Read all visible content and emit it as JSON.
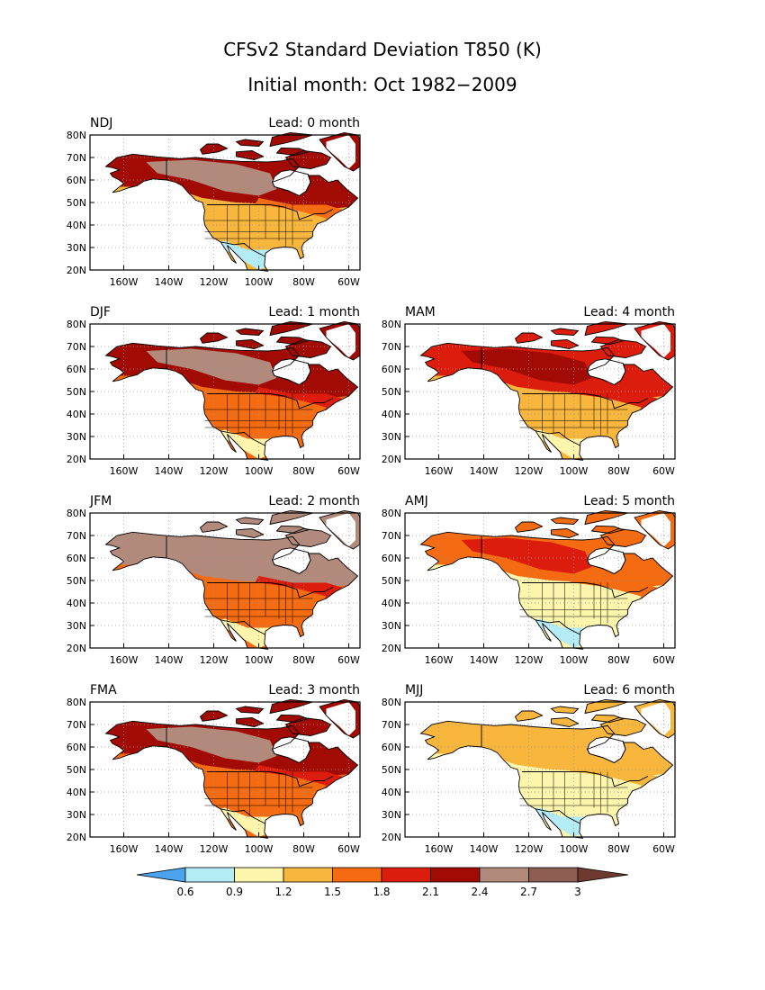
{
  "title": "CFSv2 Standard Deviation T850 (K)",
  "subtitle": "Initial month: Oct 1982−2009",
  "x_ticks": [
    "160W",
    "140W",
    "120W",
    "100W",
    "80W",
    "60W"
  ],
  "y_ticks": [
    "20N",
    "30N",
    "40N",
    "50N",
    "60N",
    "70N",
    "80N"
  ],
  "colorbar": {
    "ticks": [
      "0.6",
      "0.9",
      "1.2",
      "1.5",
      "1.8",
      "2.1",
      "2.4",
      "2.7",
      "3"
    ],
    "colors": [
      "#4aa3ec",
      "#b4ecf6",
      "#fcf5ab",
      "#f8b63d",
      "#f46b12",
      "#dc1c0c",
      "#a20b04",
      "#b28a7c",
      "#8e5e52",
      "#6e3a30"
    ]
  },
  "panels": [
    {
      "season": "NDJ",
      "lead": "Lead: 0 month",
      "bands": {
        "south": 1,
        "center": 3,
        "north": 6,
        "core": 7,
        "east": 4
      }
    },
    {
      "season": "DJF",
      "lead": "Lead: 1 month",
      "bands": {
        "south": 2,
        "center": 4,
        "north": 6,
        "core": 7,
        "east": 5
      }
    },
    {
      "season": "MAM",
      "lead": "Lead: 4 month",
      "bands": {
        "south": 2,
        "center": 3,
        "north": 5,
        "core": 6,
        "east": 5
      }
    },
    {
      "season": "JFM",
      "lead": "Lead: 2 month",
      "bands": {
        "south": 2,
        "center": 4,
        "north": 7,
        "core": 7,
        "east": 5
      }
    },
    {
      "season": "AMJ",
      "lead": "Lead: 5 month",
      "bands": {
        "south": 1,
        "center": 2,
        "north": 4,
        "core": 5,
        "east": 4
      }
    },
    {
      "season": "FMA",
      "lead": "Lead: 3 month",
      "bands": {
        "south": 2,
        "center": 4,
        "north": 6,
        "core": 7,
        "east": 5
      }
    },
    {
      "season": "MJJ",
      "lead": "Lead: 6 month",
      "bands": {
        "south": 1,
        "center": 2,
        "north": 3,
        "core": 3,
        "east": 3
      }
    }
  ]
}
